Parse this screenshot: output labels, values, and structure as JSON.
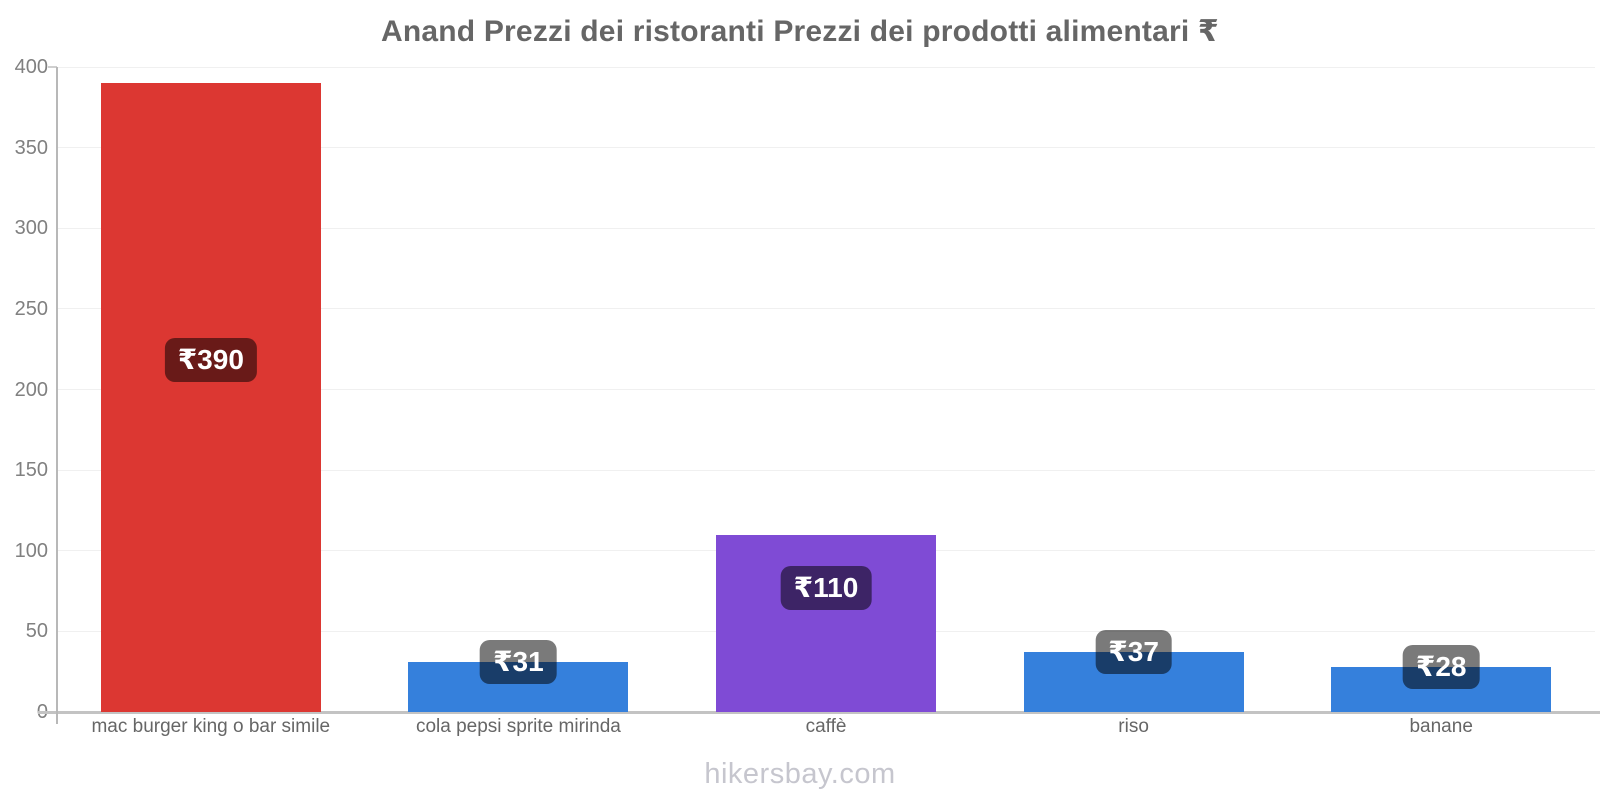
{
  "chart_data": {
    "type": "bar",
    "title": "Anand Prezzi dei ristoranti Prezzi dei prodotti alimentari ₹",
    "categories": [
      "mac burger king o bar simile",
      "cola pepsi sprite mirinda",
      "caffè",
      "riso",
      "banane"
    ],
    "values": [
      390,
      31,
      110,
      37,
      28
    ],
    "value_labels": [
      "₹390",
      "₹31",
      "₹110",
      "₹37",
      "₹28"
    ],
    "bar_colors": [
      "#dc3732",
      "#3580dc",
      "#7f4bd5",
      "#3580dc",
      "#3580dc"
    ],
    "currency_symbol": "₹",
    "ylim": [
      0,
      400
    ],
    "yticks": [
      0,
      50,
      100,
      150,
      200,
      250,
      300,
      350,
      400
    ],
    "grid": true,
    "legend_position": "none",
    "xlabel": "",
    "ylabel": ""
  },
  "colors": {
    "title_text": "#666666",
    "ytick_text": "#808080",
    "xcat_text": "#666666",
    "gridline": "#f0f0f0",
    "xaxis_line": "#c3c3c3",
    "yaxis_line": "#b8b8b8",
    "badge_background": "rgba(0,0,0,0.52)",
    "badge_text": "#ffffff",
    "footer_text": "#c6c6ce",
    "background": "#ffffff"
  },
  "footer": {
    "text": "hikersbay.com"
  }
}
